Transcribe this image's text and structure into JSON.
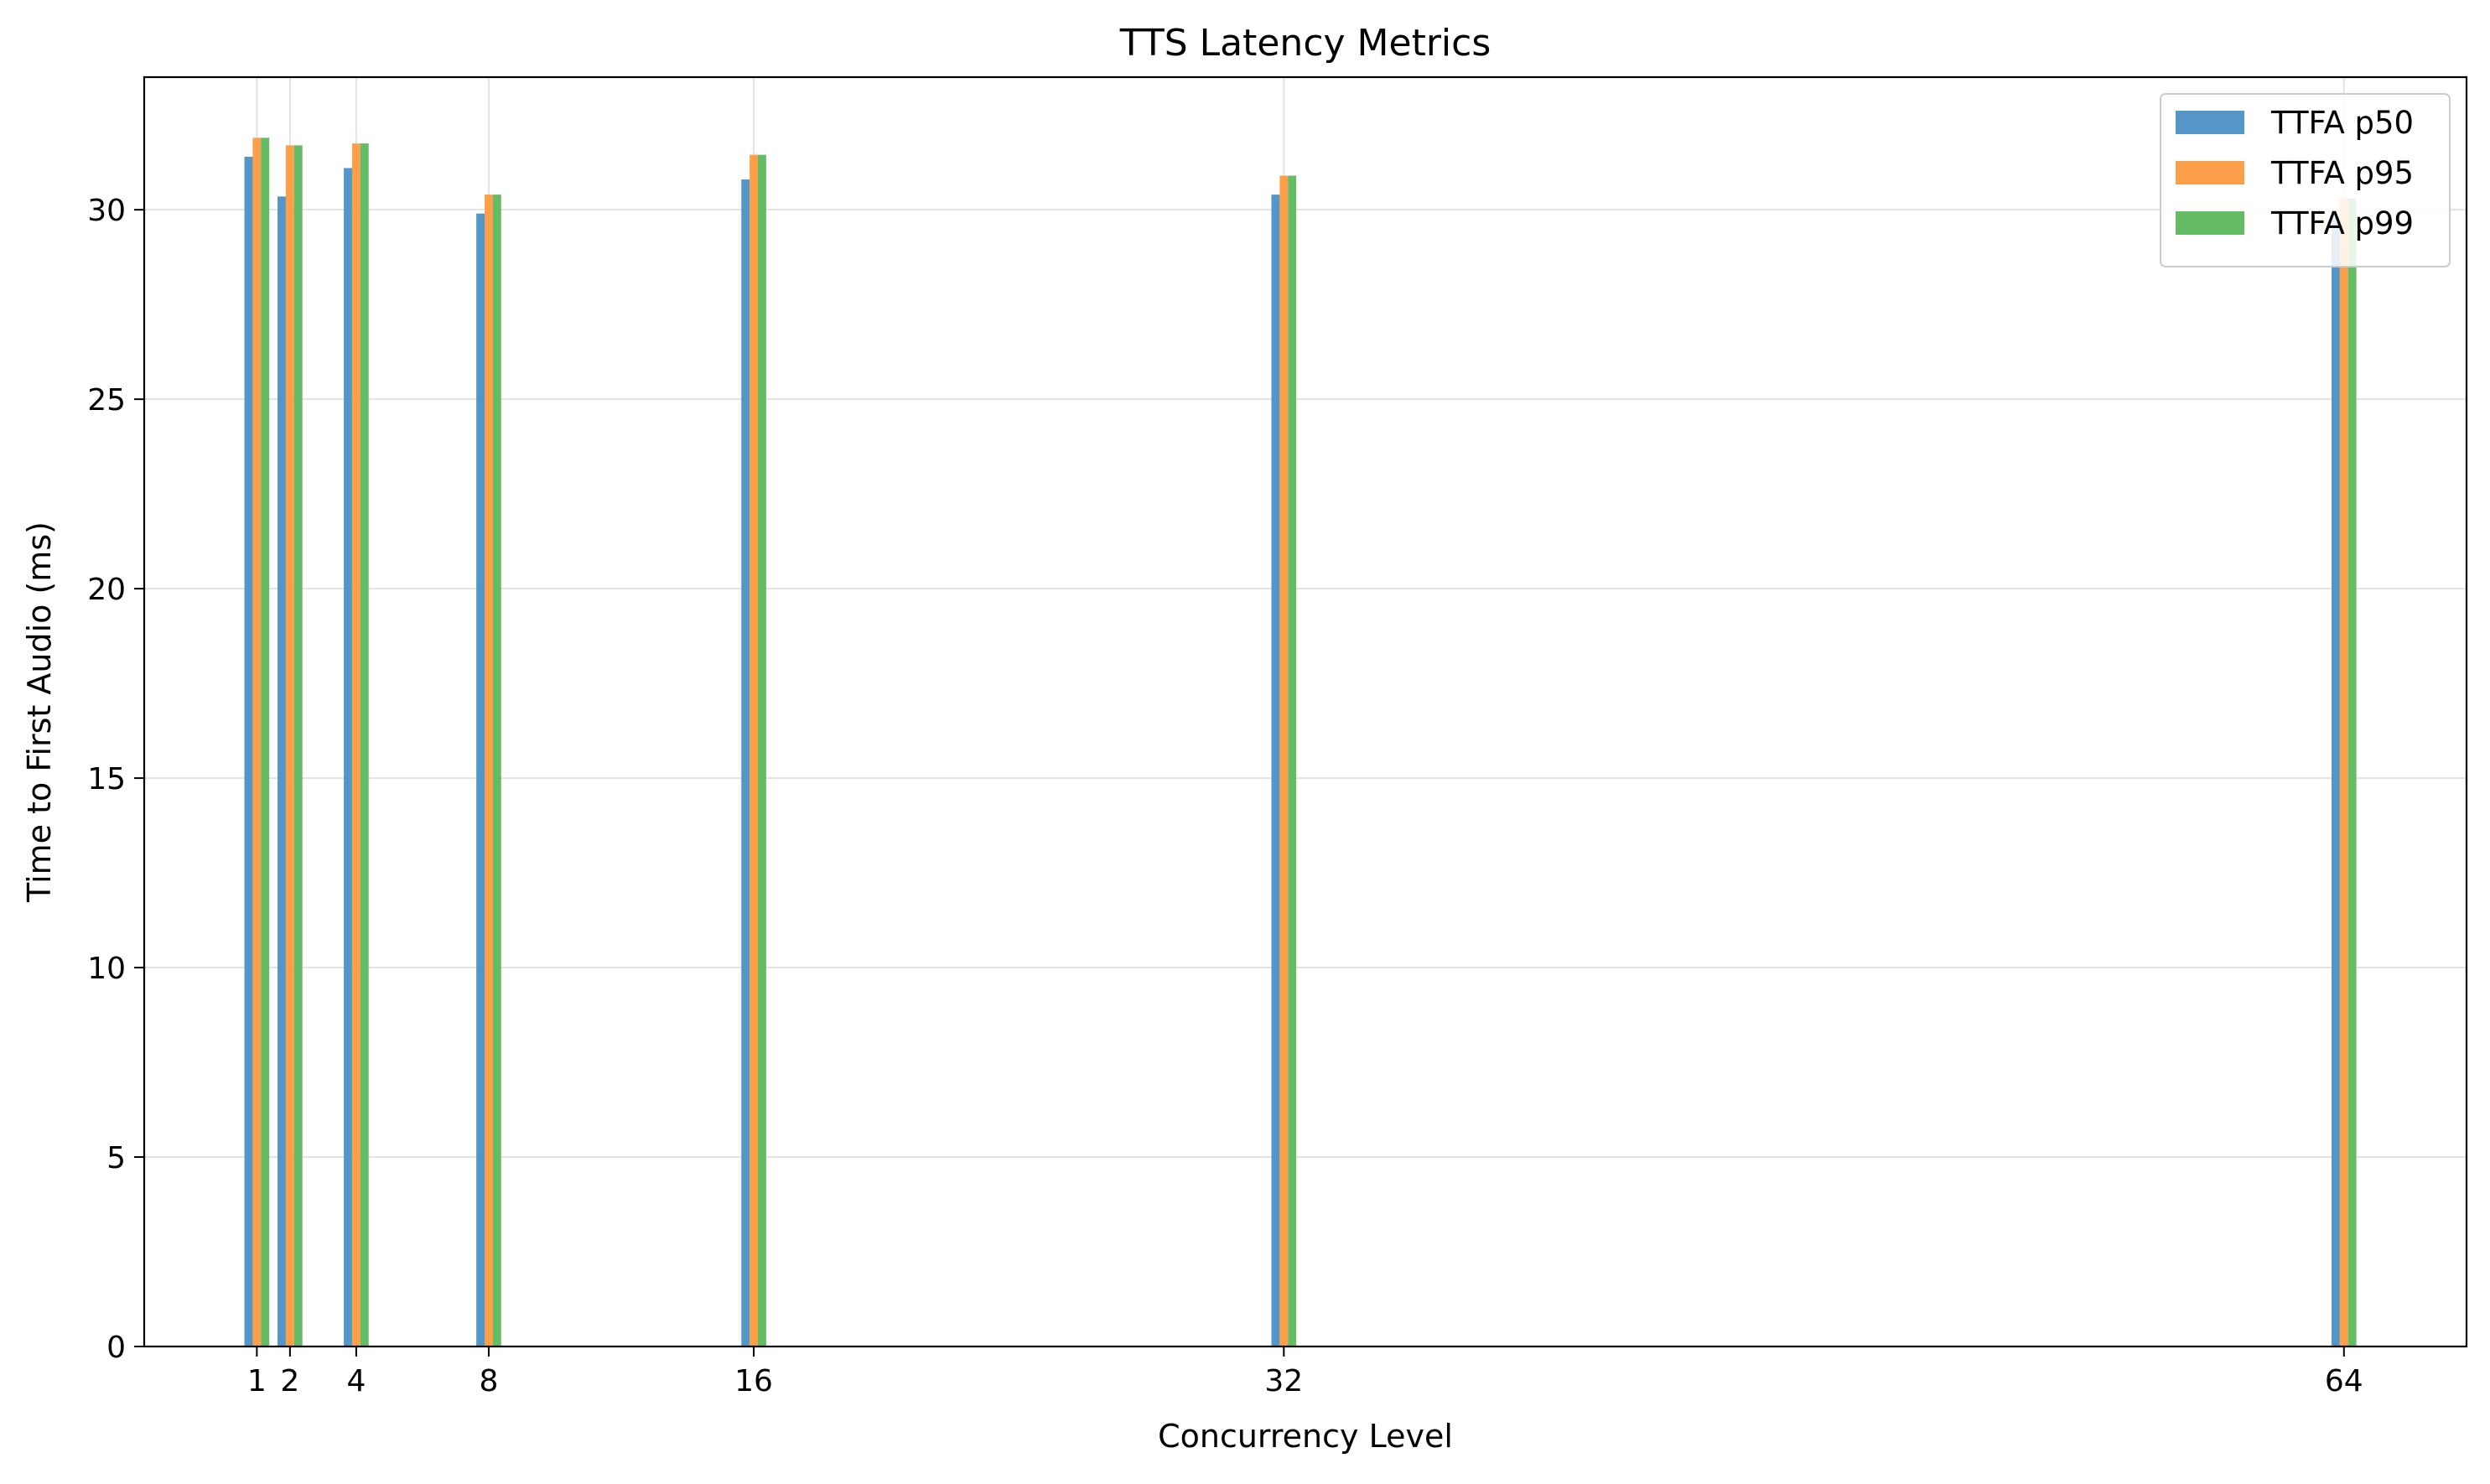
{
  "chart_data": {
    "type": "bar",
    "title": "TTS Latency Metrics",
    "xlabel": "Concurrency Level",
    "ylabel": "Time to First Audio (ms)",
    "x": [
      1,
      2,
      4,
      8,
      16,
      32,
      64
    ],
    "x_tick_labels": [
      "1",
      "2",
      "4",
      "8",
      "16",
      "32",
      "64"
    ],
    "xlim": [
      -2.4,
      67.7
    ],
    "ylim": [
      0,
      33.5
    ],
    "y_ticks": [
      0,
      5,
      10,
      15,
      20,
      25,
      30
    ],
    "y_tick_labels": [
      "0",
      "5",
      "10",
      "15",
      "20",
      "25",
      "30"
    ],
    "grid": true,
    "legend_position": "top-right",
    "series": [
      {
        "name": "TTFA p50",
        "color": "#4a90c4",
        "values": [
          31.4,
          30.35,
          31.1,
          29.9,
          30.8,
          30.4,
          29.8
        ]
      },
      {
        "name": "TTFA p95",
        "color": "#fb9a40",
        "values": [
          31.9,
          31.7,
          31.75,
          30.4,
          31.45,
          30.9,
          30.3
        ]
      },
      {
        "name": "TTFA p99",
        "color": "#5cb85c",
        "values": [
          31.9,
          31.7,
          31.75,
          30.4,
          31.45,
          30.9,
          30.3
        ]
      }
    ]
  }
}
